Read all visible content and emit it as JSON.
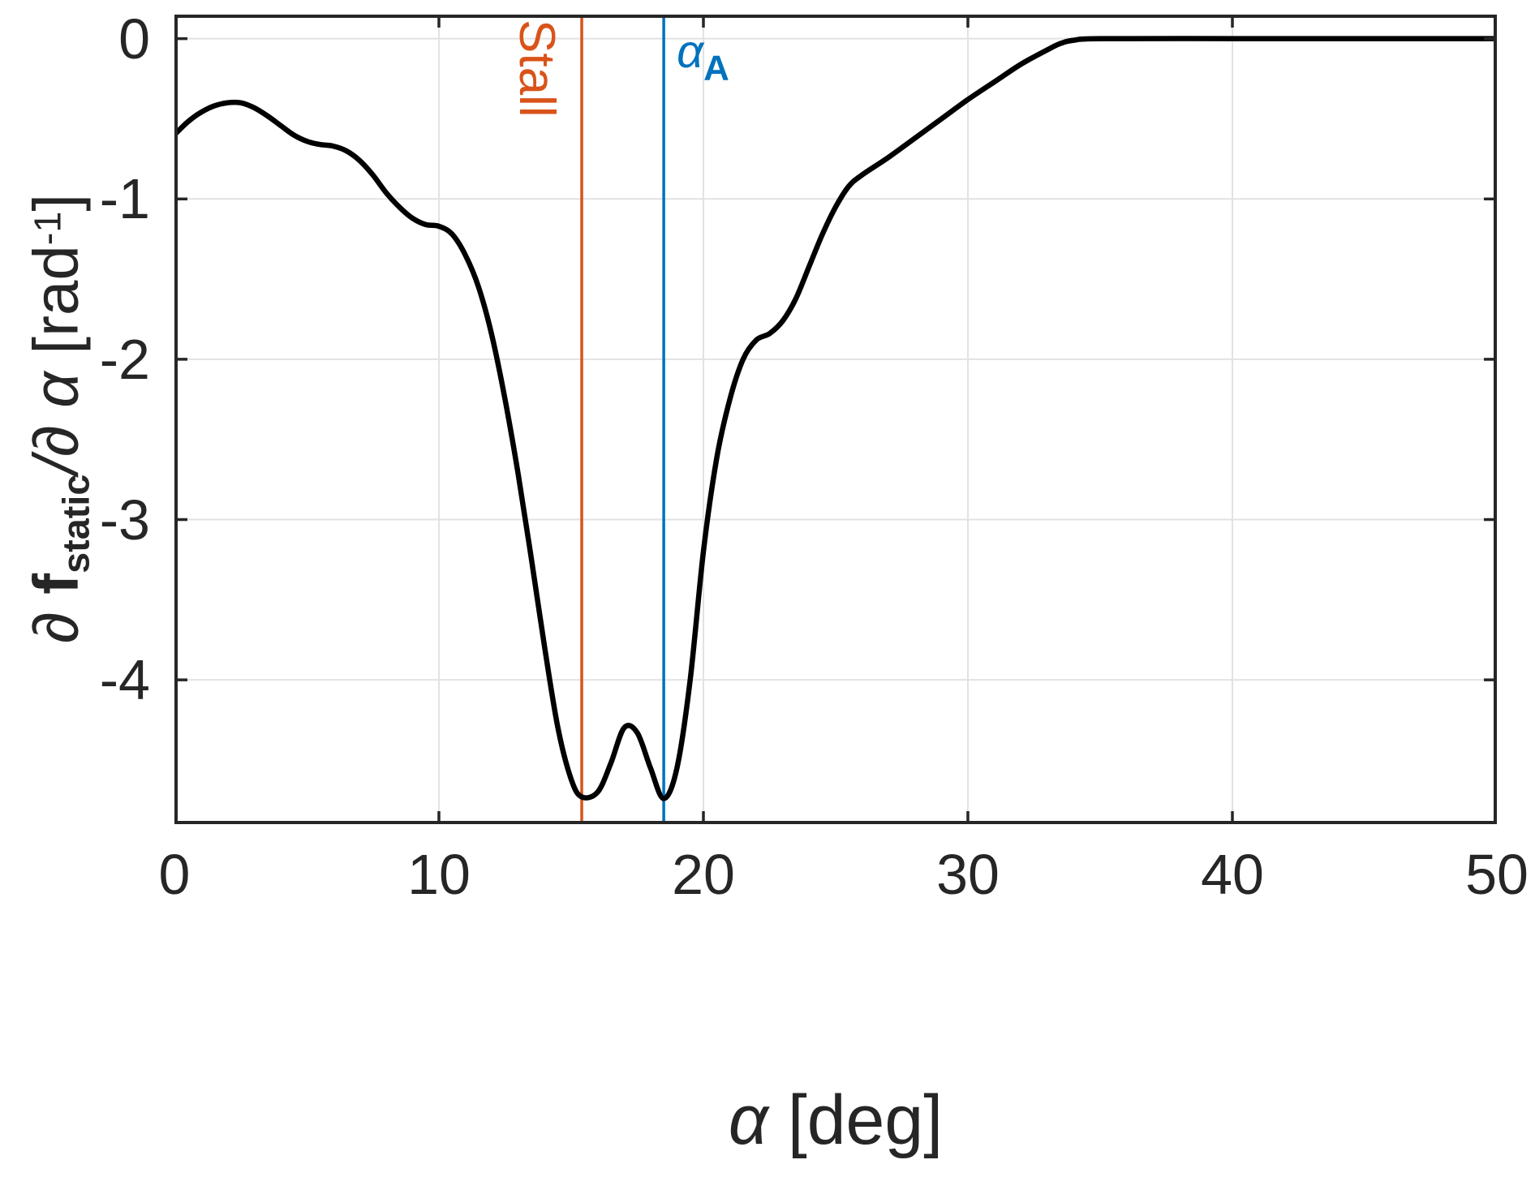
{
  "figure": {
    "background": "#ffffff",
    "axes_color": "#262626",
    "grid_color": "#e2e2e2",
    "tick_length": 16,
    "box_line_width": 4,
    "grid_line_width": 2
  },
  "chart_data": {
    "type": "line",
    "title": "",
    "xlabel": "α [deg]",
    "ylabel": "∂f_static/∂α [rad⁻¹]",
    "xlim": [
      0,
      50
    ],
    "ylim": [
      -4.9,
      0.15
    ],
    "xticks": [
      0,
      10,
      20,
      30,
      40,
      50
    ],
    "yticks": [
      0,
      -1,
      -2,
      -3,
      -4
    ],
    "grid": true,
    "legend": "none",
    "series": [
      {
        "name": "∂f_static/∂α",
        "color": "#000000",
        "line_width": 6.5,
        "x": [
          0,
          0.5,
          1,
          1.5,
          2,
          2.5,
          3,
          3.5,
          4,
          4.5,
          5,
          5.5,
          6,
          6.5,
          7,
          7.5,
          8,
          8.5,
          9,
          9.5,
          10,
          10.5,
          11,
          11.5,
          12,
          12.5,
          13,
          13.5,
          14,
          14.5,
          15,
          15.4,
          16,
          16.5,
          17,
          17.5,
          18,
          18.5,
          19,
          19.5,
          20,
          20.5,
          21,
          21.5,
          22,
          22.5,
          23,
          23.5,
          24,
          24.5,
          25,
          25.5,
          26,
          27,
          28,
          29,
          30,
          31,
          32,
          33,
          33.5,
          34,
          35,
          40,
          45,
          50
        ],
        "y": [
          -0.6,
          -0.52,
          -0.46,
          -0.42,
          -0.4,
          -0.4,
          -0.43,
          -0.48,
          -0.54,
          -0.6,
          -0.64,
          -0.66,
          -0.67,
          -0.7,
          -0.76,
          -0.85,
          -0.96,
          -1.05,
          -1.12,
          -1.16,
          -1.17,
          -1.22,
          -1.35,
          -1.55,
          -1.85,
          -2.25,
          -2.72,
          -3.25,
          -3.8,
          -4.3,
          -4.62,
          -4.73,
          -4.7,
          -4.52,
          -4.3,
          -4.33,
          -4.55,
          -4.74,
          -4.55,
          -4.0,
          -3.2,
          -2.62,
          -2.25,
          -2.0,
          -1.88,
          -1.84,
          -1.76,
          -1.62,
          -1.42,
          -1.22,
          -1.05,
          -0.92,
          -0.85,
          -0.74,
          -0.62,
          -0.5,
          -0.38,
          -0.27,
          -0.16,
          -0.07,
          -0.03,
          -0.01,
          0,
          0,
          0,
          0
        ]
      }
    ],
    "vlines": [
      {
        "label": "Stall",
        "x": 15.4,
        "color": "#d95319",
        "line_width": 3.5
      },
      {
        "label": "α_A",
        "x": 18.5,
        "color": "#0072bd",
        "line_width": 3.5
      }
    ]
  },
  "annotations": {
    "stall": {
      "text": "Stall",
      "color": "#d95319"
    },
    "alpha_a": {
      "symbol": "α",
      "subscript": "A",
      "color": "#0072bd"
    }
  },
  "axis_labels": {
    "x": {
      "alpha": "α",
      "unit": "[deg]"
    },
    "y": {
      "partial": "∂",
      "f": "f",
      "f_sub": "static",
      "slash_partial": "/∂",
      "alpha": "α",
      "unit_open": "[rad",
      "exponent": "-1",
      "unit_close": "]"
    }
  }
}
